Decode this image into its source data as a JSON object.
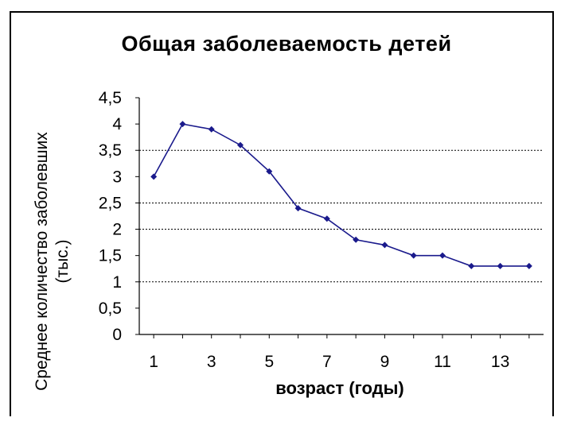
{
  "chart_data": {
    "type": "line",
    "title": "Общая заболеваемость детей",
    "xlabel": "возраст (годы)",
    "ylabel_line1": "Среднее количество заболевших",
    "ylabel_line2": "(тыс.)",
    "x": [
      1,
      2,
      3,
      4,
      5,
      6,
      7,
      8,
      9,
      10,
      11,
      12,
      13,
      14
    ],
    "series": [
      {
        "values": [
          3.0,
          4.0,
          3.9,
          3.6,
          3.1,
          2.4,
          2.2,
          1.8,
          1.7,
          1.5,
          1.5,
          1.3,
          1.3,
          1.3
        ]
      }
    ],
    "ylim": [
      0,
      4.5
    ],
    "y_ticks": [
      "0",
      "0,5",
      "1",
      "1,5",
      "2",
      "2,5",
      "3",
      "3,5",
      "4",
      "4,5"
    ],
    "x_ticks": [
      "1",
      "3",
      "5",
      "7",
      "9",
      "11",
      "13"
    ],
    "gridlines_at": [
      1,
      2,
      2.5,
      3.5
    ],
    "line_color": "#1a1a8c"
  }
}
